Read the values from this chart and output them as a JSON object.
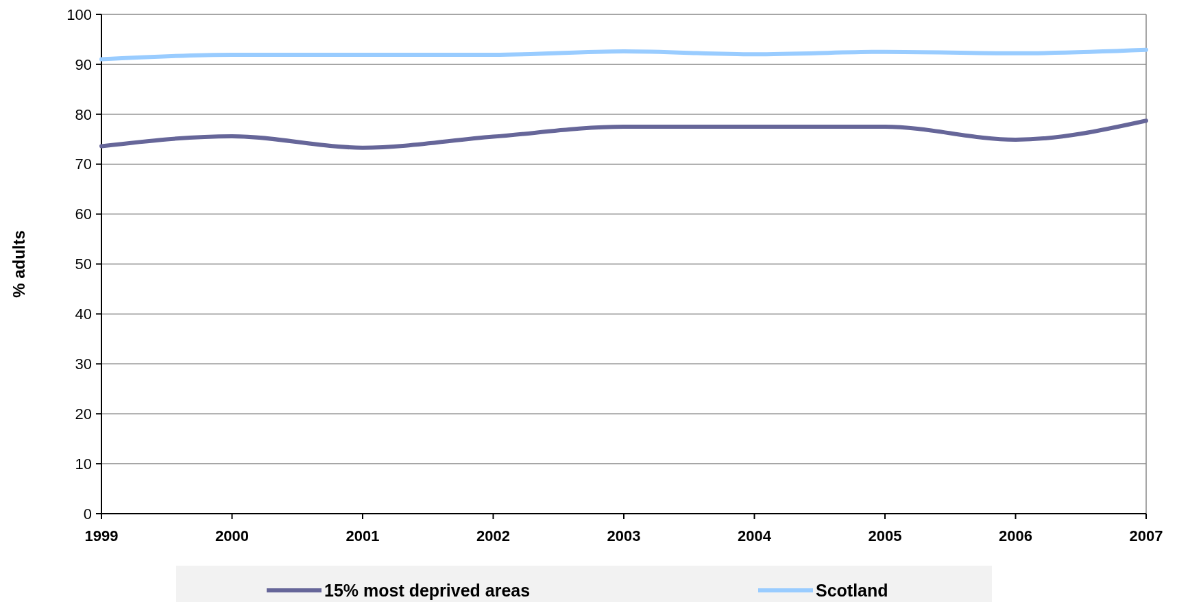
{
  "chart_data": {
    "type": "line",
    "ylabel": "% adults",
    "categories": [
      "1999",
      "2000",
      "2001",
      "2002",
      "2003",
      "2004",
      "2005",
      "2006",
      "2007"
    ],
    "series": [
      {
        "name": "15% most deprived areas",
        "color": "#666699",
        "values": [
          73.6,
          75.6,
          73.3,
          75.5,
          77.5,
          77.5,
          77.5,
          74.9,
          78.7
        ]
      },
      {
        "name": "Scotland",
        "color": "#99ccff",
        "values": [
          91,
          91.9,
          91.9,
          91.9,
          92.6,
          92,
          92.5,
          92.2,
          92.9
        ]
      }
    ],
    "ylim": [
      0,
      100
    ],
    "yticks": [
      0,
      10,
      20,
      30,
      40,
      50,
      60,
      70,
      80,
      90,
      100
    ],
    "grid": "y",
    "legend": "bottom",
    "marker": "none",
    "line_style": "solid"
  }
}
